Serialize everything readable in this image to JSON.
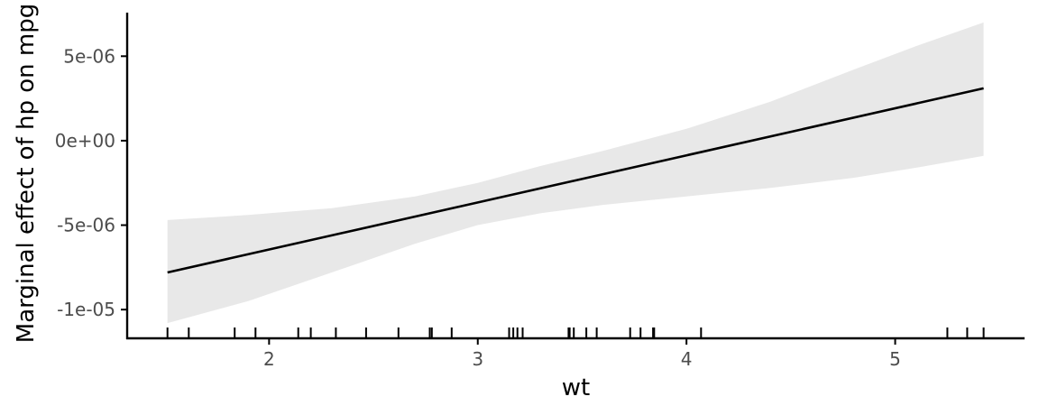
{
  "chart_data": {
    "type": "line",
    "title": "",
    "xlabel": "wt",
    "ylabel": "Marginal effect of hp on mpg",
    "xlim": [
      1.32,
      5.62
    ],
    "ylim": [
      -1.17e-05,
      7.9e-06
    ],
    "x_ticks": [
      {
        "value": 2,
        "label": "2"
      },
      {
        "value": 3,
        "label": "3"
      },
      {
        "value": 4,
        "label": "4"
      },
      {
        "value": 5,
        "label": "5"
      }
    ],
    "y_ticks": [
      {
        "value": -1e-05,
        "label": "-1e-05"
      },
      {
        "value": -5e-06,
        "label": "-5e-06"
      },
      {
        "value": 0,
        "label": "0e+00"
      },
      {
        "value": 5e-06,
        "label": "5e-06"
      }
    ],
    "grid": false,
    "series": [
      {
        "x": [
          1.513,
          5.424
        ],
        "y": [
          -7.8e-06,
          3.1e-06
        ]
      }
    ],
    "confidence_band": {
      "x": [
        1.513,
        1.9,
        2.3,
        2.7,
        3.0,
        3.3,
        3.6,
        4.0,
        4.4,
        4.8,
        5.1,
        5.424
      ],
      "lower": [
        -1.08e-05,
        -9.5e-06,
        -7.8e-06,
        -6.1e-06,
        -5e-06,
        -4.3e-06,
        -3.8e-06,
        -3.3e-06,
        -2.8e-06,
        -2.2e-06,
        -1.6e-06,
        -9e-07
      ],
      "upper": [
        -4.7e-06,
        -4.4e-06,
        -4e-06,
        -3.3e-06,
        -2.5e-06,
        -1.5e-06,
        -6e-07,
        7e-07,
        2.3e-06,
        4.2e-06,
        5.6e-06,
        7e-06
      ]
    },
    "rug": [
      1.513,
      1.615,
      1.835,
      1.935,
      2.14,
      2.2,
      2.32,
      2.465,
      2.62,
      2.77,
      2.78,
      2.875,
      3.15,
      3.17,
      3.19,
      3.215,
      3.435,
      3.44,
      3.46,
      3.52,
      3.57,
      3.73,
      3.78,
      3.84,
      3.845,
      4.07,
      5.25,
      5.345,
      5.424
    ],
    "colors": {
      "line": "#000000",
      "band": "#e8e8e8",
      "axis": "#000000",
      "tick_label": "#4d4d4d"
    }
  }
}
